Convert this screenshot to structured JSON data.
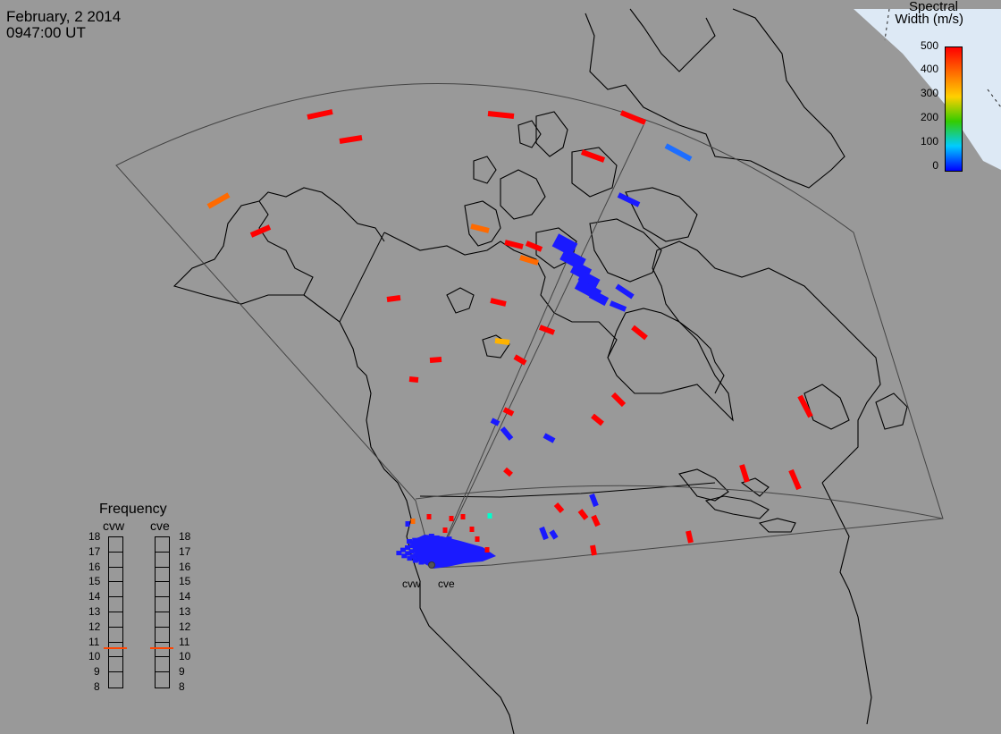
{
  "header": {
    "date": "February, 2 2014",
    "time": "0947:00 UT"
  },
  "colorbar": {
    "title_line1": "Spectral",
    "title_line2": "Width (m/s)",
    "ticks": [
      "500",
      "400",
      "300",
      "200",
      "100",
      "0"
    ],
    "colors": [
      "#ff0000",
      "#ff6a00",
      "#ffd000",
      "#33cc00",
      "#00ccff",
      "#0000ff"
    ]
  },
  "frequency_panel": {
    "title": "Frequency",
    "radars": [
      "cvw",
      "cve"
    ],
    "scale": [
      "18",
      "17",
      "16",
      "15",
      "14",
      "13",
      "12",
      "11",
      "10",
      "9",
      "8"
    ],
    "selected_mhz": [
      10.6,
      10.6
    ],
    "marker_color": "#ff4400"
  },
  "radars": {
    "names": [
      "cvw",
      "cve"
    ]
  },
  "map": {
    "background": "#999999",
    "coastline_color": "#000000",
    "fov_color": "#444444",
    "daylight_color": "#ddeeff"
  }
}
